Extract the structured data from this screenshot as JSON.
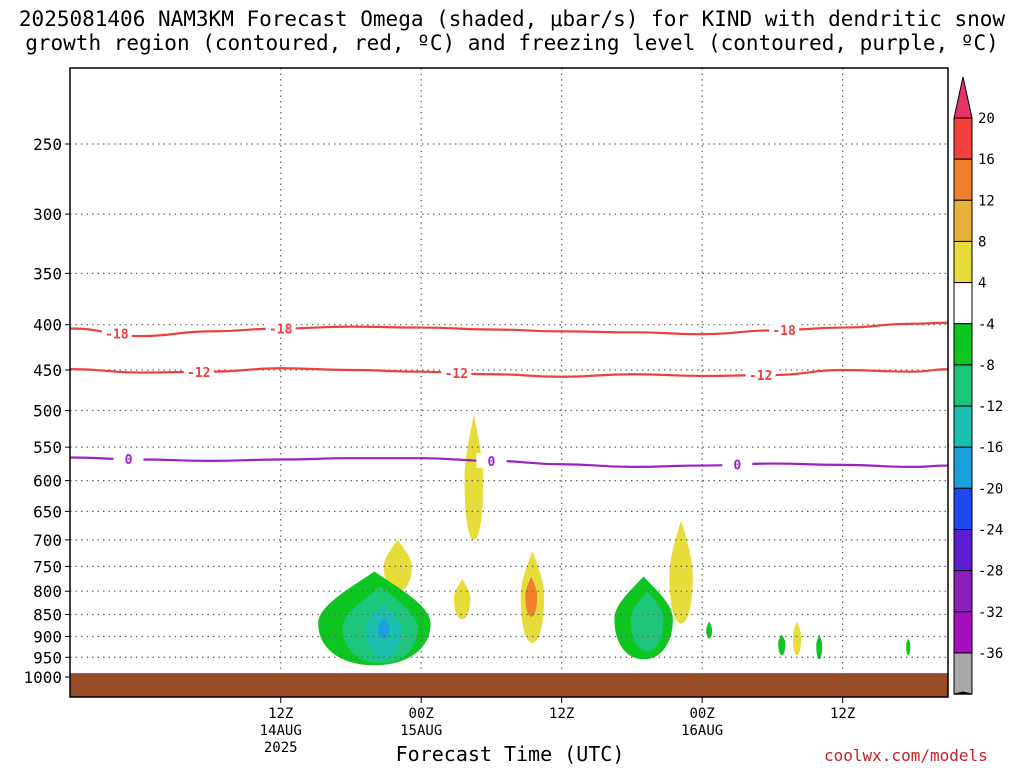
{
  "header": {
    "title_line1": "2025081406 NAM3KM Forecast Omega (shaded, μbar/s) for KIND with dendritic snow",
    "title_line2": "growth region (contoured, red, ºC) and freezing level (contoured, purple, ºC)"
  },
  "footer": {
    "xaxis_title": "Forecast Time (UTC)",
    "credit": "coolwx.com/models"
  },
  "chart_data": {
    "type": "time-height contour",
    "xlabel": "Forecast Time (UTC)",
    "ylabel": "",
    "x_range_hours": [
      -6,
      69
    ],
    "y_axis": {
      "type": "log-pressure",
      "unit": "hPa",
      "ylim": [
        1040,
        200
      ],
      "ticks": [
        250,
        300,
        350,
        400,
        450,
        500,
        550,
        600,
        650,
        700,
        750,
        800,
        850,
        900,
        950,
        1000
      ]
    },
    "x_ticks": [
      {
        "hour": 12,
        "line1": "12Z",
        "line2": "14AUG",
        "line3": "2025"
      },
      {
        "hour": 24,
        "line1": "00Z",
        "line2": "15AUG",
        "line3": ""
      },
      {
        "hour": 36,
        "line1": "12Z",
        "line2": "",
        "line3": ""
      },
      {
        "hour": 48,
        "line1": "00Z",
        "line2": "16AUG",
        "line3": ""
      },
      {
        "hour": 60,
        "line1": "12Z",
        "line2": "",
        "line3": ""
      }
    ],
    "grid": true,
    "colorbar": {
      "unit": "μbar/s",
      "labels": [
        "20",
        "16",
        "12",
        "8",
        "4",
        "-4",
        "-8",
        "-12",
        "-16",
        "-20",
        "-24",
        "-28",
        "-32",
        "-36"
      ],
      "colors": [
        "#e8336b",
        "#f4413b",
        "#ef7f2a",
        "#e7b23a",
        "#e6dc3a",
        "#ffffff",
        "#0dc61f",
        "#1dc57a",
        "#1abfb0",
        "#1aa0dc",
        "#1f49f0",
        "#5b1fd0",
        "#8b1fbd",
        "#a60fbd",
        "#a8a8a8",
        "#000000"
      ]
    },
    "contours": [
      {
        "name": "dendritic -18C",
        "color": "#ee4040",
        "label": "-18",
        "points": [
          [
            -6,
            404
          ],
          [
            0,
            412
          ],
          [
            6,
            407
          ],
          [
            12,
            404
          ],
          [
            18,
            402
          ],
          [
            24,
            403
          ],
          [
            30,
            405
          ],
          [
            36,
            407
          ],
          [
            42,
            408
          ],
          [
            48,
            410
          ],
          [
            54,
            406
          ],
          [
            60,
            403
          ],
          [
            66,
            399
          ],
          [
            69,
            398
          ]
        ],
        "label_hours": [
          -2,
          12,
          55
        ]
      },
      {
        "name": "dendritic -12C",
        "color": "#ee4040",
        "label": "-12",
        "points": [
          [
            -6,
            449
          ],
          [
            0,
            453
          ],
          [
            6,
            452
          ],
          [
            12,
            448
          ],
          [
            18,
            450
          ],
          [
            24,
            452
          ],
          [
            30,
            455
          ],
          [
            36,
            458
          ],
          [
            42,
            455
          ],
          [
            48,
            457
          ],
          [
            54,
            456
          ],
          [
            60,
            450
          ],
          [
            66,
            452
          ],
          [
            69,
            449
          ]
        ],
        "label_hours": [
          5,
          27,
          53
        ]
      },
      {
        "name": "freezing level 0C",
        "color": "#9b20c8",
        "label": "0",
        "points": [
          [
            -6,
            565
          ],
          [
            0,
            568
          ],
          [
            6,
            570
          ],
          [
            12,
            568
          ],
          [
            18,
            566
          ],
          [
            24,
            566
          ],
          [
            30,
            570
          ],
          [
            36,
            575
          ],
          [
            42,
            579
          ],
          [
            48,
            577
          ],
          [
            54,
            574
          ],
          [
            60,
            576
          ],
          [
            66,
            579
          ],
          [
            69,
            577
          ]
        ],
        "label_hours": [
          -1,
          30,
          51
        ]
      }
    ],
    "omega_features": [
      {
        "center_hour": 28.5,
        "center_hpa": 600,
        "half_width_hours": 0.8,
        "top_hpa": 505,
        "bottom_hpa": 700,
        "color": "#e6dc3a"
      },
      {
        "center_hour": 27.5,
        "center_hpa": 815,
        "half_width_hours": 0.7,
        "top_hpa": 775,
        "bottom_hpa": 860,
        "color": "#e6dc3a"
      },
      {
        "center_hour": 33.5,
        "center_hpa": 810,
        "half_width_hours": 1.0,
        "top_hpa": 720,
        "bottom_hpa": 915,
        "color": "#e6dc3a"
      },
      {
        "center_hour": 33.4,
        "center_hpa": 810,
        "half_width_hours": 0.5,
        "top_hpa": 770,
        "bottom_hpa": 855,
        "color": "#ef7f2a"
      },
      {
        "center_hour": 22.0,
        "center_hpa": 750,
        "half_width_hours": 1.2,
        "top_hpa": 700,
        "bottom_hpa": 800,
        "color": "#e6dc3a"
      },
      {
        "center_hour": 46.2,
        "center_hpa": 770,
        "half_width_hours": 1.0,
        "top_hpa": 665,
        "bottom_hpa": 870,
        "color": "#e6dc3a"
      },
      {
        "center_hour": 20.0,
        "center_hpa": 870,
        "half_width_hours": 4.8,
        "top_hpa": 760,
        "bottom_hpa": 970,
        "color": "#0dc61f"
      },
      {
        "center_hour": 20.5,
        "center_hpa": 880,
        "half_width_hours": 3.2,
        "top_hpa": 790,
        "bottom_hpa": 965,
        "color": "#1dc57a"
      },
      {
        "center_hour": 20.8,
        "center_hpa": 880,
        "half_width_hours": 1.5,
        "top_hpa": 830,
        "bottom_hpa": 950,
        "color": "#1abfb0"
      },
      {
        "center_hour": 20.8,
        "center_hpa": 880,
        "half_width_hours": 0.5,
        "top_hpa": 860,
        "bottom_hpa": 905,
        "color": "#1aa0dc"
      },
      {
        "center_hour": 43.0,
        "center_hpa": 860,
        "half_width_hours": 2.5,
        "top_hpa": 770,
        "bottom_hpa": 955,
        "color": "#0dc61f"
      },
      {
        "center_hour": 43.3,
        "center_hpa": 860,
        "half_width_hours": 1.4,
        "top_hpa": 800,
        "bottom_hpa": 935,
        "color": "#1dc57a"
      },
      {
        "center_hour": 48.6,
        "center_hpa": 885,
        "half_width_hours": 0.25,
        "top_hpa": 865,
        "bottom_hpa": 905,
        "color": "#0dc61f"
      },
      {
        "center_hour": 54.8,
        "center_hpa": 915,
        "half_width_hours": 0.3,
        "top_hpa": 895,
        "bottom_hpa": 945,
        "color": "#0dc61f"
      },
      {
        "center_hour": 56.1,
        "center_hpa": 900,
        "half_width_hours": 0.35,
        "top_hpa": 865,
        "bottom_hpa": 945,
        "color": "#e6dc3a"
      },
      {
        "center_hour": 58.0,
        "center_hpa": 920,
        "half_width_hours": 0.25,
        "top_hpa": 895,
        "bottom_hpa": 955,
        "color": "#0dc61f"
      },
      {
        "center_hour": 65.6,
        "center_hpa": 920,
        "half_width_hours": 0.18,
        "top_hpa": 905,
        "bottom_hpa": 945,
        "color": "#0dc61f"
      }
    ],
    "terrain": {
      "color": "#9a4a24",
      "top_hpa": 990
    }
  }
}
